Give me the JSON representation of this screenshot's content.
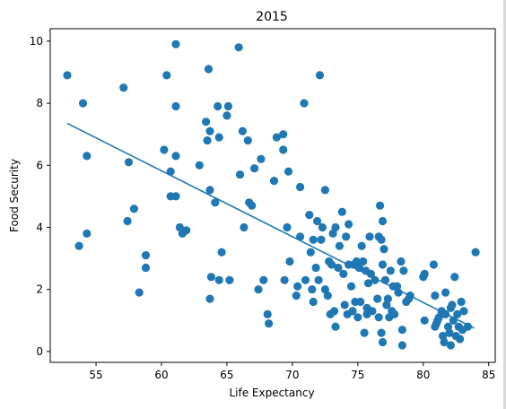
{
  "chart_data": {
    "type": "scatter",
    "title": "2015",
    "xlabel": "Life Expectancy",
    "ylabel": "Food Security",
    "xlim": [
      51.5,
      85.5
    ],
    "ylim": [
      -0.35,
      10.4
    ],
    "xticks": [
      55,
      60,
      65,
      70,
      75,
      80,
      85
    ],
    "yticks": [
      0,
      2,
      4,
      6,
      8,
      10
    ],
    "grid": false,
    "point_color": "#1f77b4",
    "line_color": "#1f77b4",
    "points": [
      [
        52.8,
        8.9
      ],
      [
        53.7,
        3.4
      ],
      [
        54.0,
        8.0
      ],
      [
        54.3,
        6.3
      ],
      [
        54.3,
        3.8
      ],
      [
        57.1,
        8.5
      ],
      [
        57.4,
        4.2
      ],
      [
        57.5,
        6.1
      ],
      [
        57.9,
        4.6
      ],
      [
        58.3,
        1.9
      ],
      [
        58.8,
        3.1
      ],
      [
        58.8,
        2.7
      ],
      [
        60.2,
        6.5
      ],
      [
        60.4,
        8.9
      ],
      [
        60.7,
        5.8
      ],
      [
        60.7,
        5.0
      ],
      [
        61.1,
        9.9
      ],
      [
        61.1,
        7.9
      ],
      [
        61.1,
        6.3
      ],
      [
        61.1,
        5.0
      ],
      [
        61.4,
        4.0
      ],
      [
        61.6,
        3.8
      ],
      [
        61.9,
        3.9
      ],
      [
        62.9,
        6.0
      ],
      [
        63.4,
        7.4
      ],
      [
        63.5,
        6.8
      ],
      [
        63.6,
        9.1
      ],
      [
        63.7,
        7.1
      ],
      [
        63.7,
        5.2
      ],
      [
        63.8,
        2.4
      ],
      [
        63.7,
        1.7
      ],
      [
        64.1,
        4.8
      ],
      [
        64.3,
        7.9
      ],
      [
        64.4,
        6.9
      ],
      [
        64.4,
        2.3
      ],
      [
        64.6,
        3.2
      ],
      [
        65.0,
        7.6
      ],
      [
        65.1,
        7.9
      ],
      [
        65.2,
        2.3
      ],
      [
        65.9,
        9.8
      ],
      [
        66.0,
        5.7
      ],
      [
        66.2,
        7.1
      ],
      [
        66.3,
        4.0
      ],
      [
        66.6,
        6.8
      ],
      [
        66.7,
        4.8
      ],
      [
        66.9,
        4.7
      ],
      [
        67.1,
        5.9
      ],
      [
        67.4,
        2.0
      ],
      [
        67.6,
        6.2
      ],
      [
        67.8,
        2.3
      ],
      [
        68.1,
        1.2
      ],
      [
        68.2,
        0.9
      ],
      [
        68.6,
        5.5
      ],
      [
        68.8,
        6.9
      ],
      [
        69.3,
        6.5
      ],
      [
        69.3,
        7.0
      ],
      [
        69.4,
        2.3
      ],
      [
        69.6,
        4.0
      ],
      [
        69.7,
        5.8
      ],
      [
        69.8,
        2.9
      ],
      [
        70.3,
        1.8
      ],
      [
        70.4,
        2.1
      ],
      [
        70.6,
        5.3
      ],
      [
        70.6,
        3.7
      ],
      [
        70.9,
        8.0
      ],
      [
        71.0,
        2.3
      ],
      [
        71.3,
        4.4
      ],
      [
        71.4,
        3.2
      ],
      [
        71.5,
        2.0
      ],
      [
        71.6,
        3.6
      ],
      [
        71.6,
        1.6
      ],
      [
        71.8,
        2.7
      ],
      [
        71.9,
        4.2
      ],
      [
        72.0,
        2.3
      ],
      [
        72.1,
        8.9
      ],
      [
        72.2,
        3.6
      ],
      [
        72.3,
        4.0
      ],
      [
        72.5,
        5.2
      ],
      [
        72.5,
        2.0
      ],
      [
        72.7,
        1.8
      ],
      [
        72.8,
        2.9
      ],
      [
        72.9,
        1.2
      ],
      [
        73.0,
        2.8
      ],
      [
        73.1,
        3.8
      ],
      [
        73.2,
        1.3
      ],
      [
        73.3,
        4.0
      ],
      [
        73.3,
        0.8
      ],
      [
        73.5,
        2.7
      ],
      [
        73.6,
        3.4
      ],
      [
        73.8,
        4.5
      ],
      [
        73.9,
        2.5
      ],
      [
        74.0,
        1.5
      ],
      [
        74.1,
        3.7
      ],
      [
        74.2,
        1.2
      ],
      [
        74.3,
        4.1
      ],
      [
        74.3,
        2.8
      ],
      [
        74.5,
        2.1
      ],
      [
        74.6,
        1.3
      ],
      [
        74.7,
        2.8
      ],
      [
        74.8,
        1.6
      ],
      [
        74.9,
        2.9
      ],
      [
        75.0,
        1.1
      ],
      [
        75.1,
        2.7
      ],
      [
        75.2,
        1.6
      ],
      [
        75.3,
        3.4
      ],
      [
        75.4,
        2.9
      ],
      [
        75.5,
        0.6
      ],
      [
        75.6,
        2.6
      ],
      [
        75.7,
        1.4
      ],
      [
        75.7,
        1.2
      ],
      [
        75.8,
        2.2
      ],
      [
        75.9,
        3.7
      ],
      [
        76.0,
        2.5
      ],
      [
        76.1,
        1.3
      ],
      [
        76.3,
        2.3
      ],
      [
        76.5,
        1.7
      ],
      [
        76.6,
        3.7
      ],
      [
        76.6,
        1.1
      ],
      [
        76.7,
        4.7
      ],
      [
        76.8,
        3.6
      ],
      [
        76.8,
        0.6
      ],
      [
        76.9,
        0.3
      ],
      [
        76.9,
        2.8
      ],
      [
        76.9,
        4.2
      ],
      [
        77.0,
        3.3
      ],
      [
        77.1,
        2.3
      ],
      [
        77.2,
        1.5
      ],
      [
        77.3,
        1.7
      ],
      [
        77.4,
        1.1
      ],
      [
        77.5,
        2.6
      ],
      [
        77.6,
        1.3
      ],
      [
        77.7,
        2.1
      ],
      [
        77.8,
        1.2
      ],
      [
        78.0,
        2.1
      ],
      [
        78.1,
        1.9
      ],
      [
        78.3,
        2.9
      ],
      [
        78.4,
        0.7
      ],
      [
        78.4,
        0.2
      ],
      [
        78.5,
        2.6
      ],
      [
        78.7,
        1.6
      ],
      [
        78.9,
        1.7
      ],
      [
        79.0,
        1.8
      ],
      [
        80.0,
        2.4
      ],
      [
        80.1,
        2.5
      ],
      [
        80.1,
        1.0
      ],
      [
        80.8,
        2.8
      ],
      [
        80.9,
        1.8
      ],
      [
        80.9,
        0.8
      ],
      [
        81.0,
        0.9
      ],
      [
        81.1,
        1.0
      ],
      [
        81.2,
        1.1
      ],
      [
        81.4,
        1.3
      ],
      [
        81.5,
        0.5
      ],
      [
        81.6,
        0.3
      ],
      [
        81.7,
        1.9
      ],
      [
        81.7,
        1.2
      ],
      [
        81.9,
        0.8
      ],
      [
        82.0,
        0.6
      ],
      [
        82.1,
        0.2
      ],
      [
        82.1,
        1.4
      ],
      [
        82.2,
        1.5
      ],
      [
        82.3,
        1.0
      ],
      [
        82.4,
        2.4
      ],
      [
        82.5,
        0.5
      ],
      [
        82.6,
        1.2
      ],
      [
        82.7,
        0.8
      ],
      [
        82.8,
        0.4
      ],
      [
        82.9,
        1.6
      ],
      [
        83.0,
        0.7
      ],
      [
        83.1,
        1.3
      ],
      [
        83.4,
        0.8
      ],
      [
        84.0,
        3.2
      ]
    ],
    "trend_line": {
      "x": [
        52.8,
        83.9
      ],
      "y": [
        7.35,
        0.75
      ]
    }
  }
}
